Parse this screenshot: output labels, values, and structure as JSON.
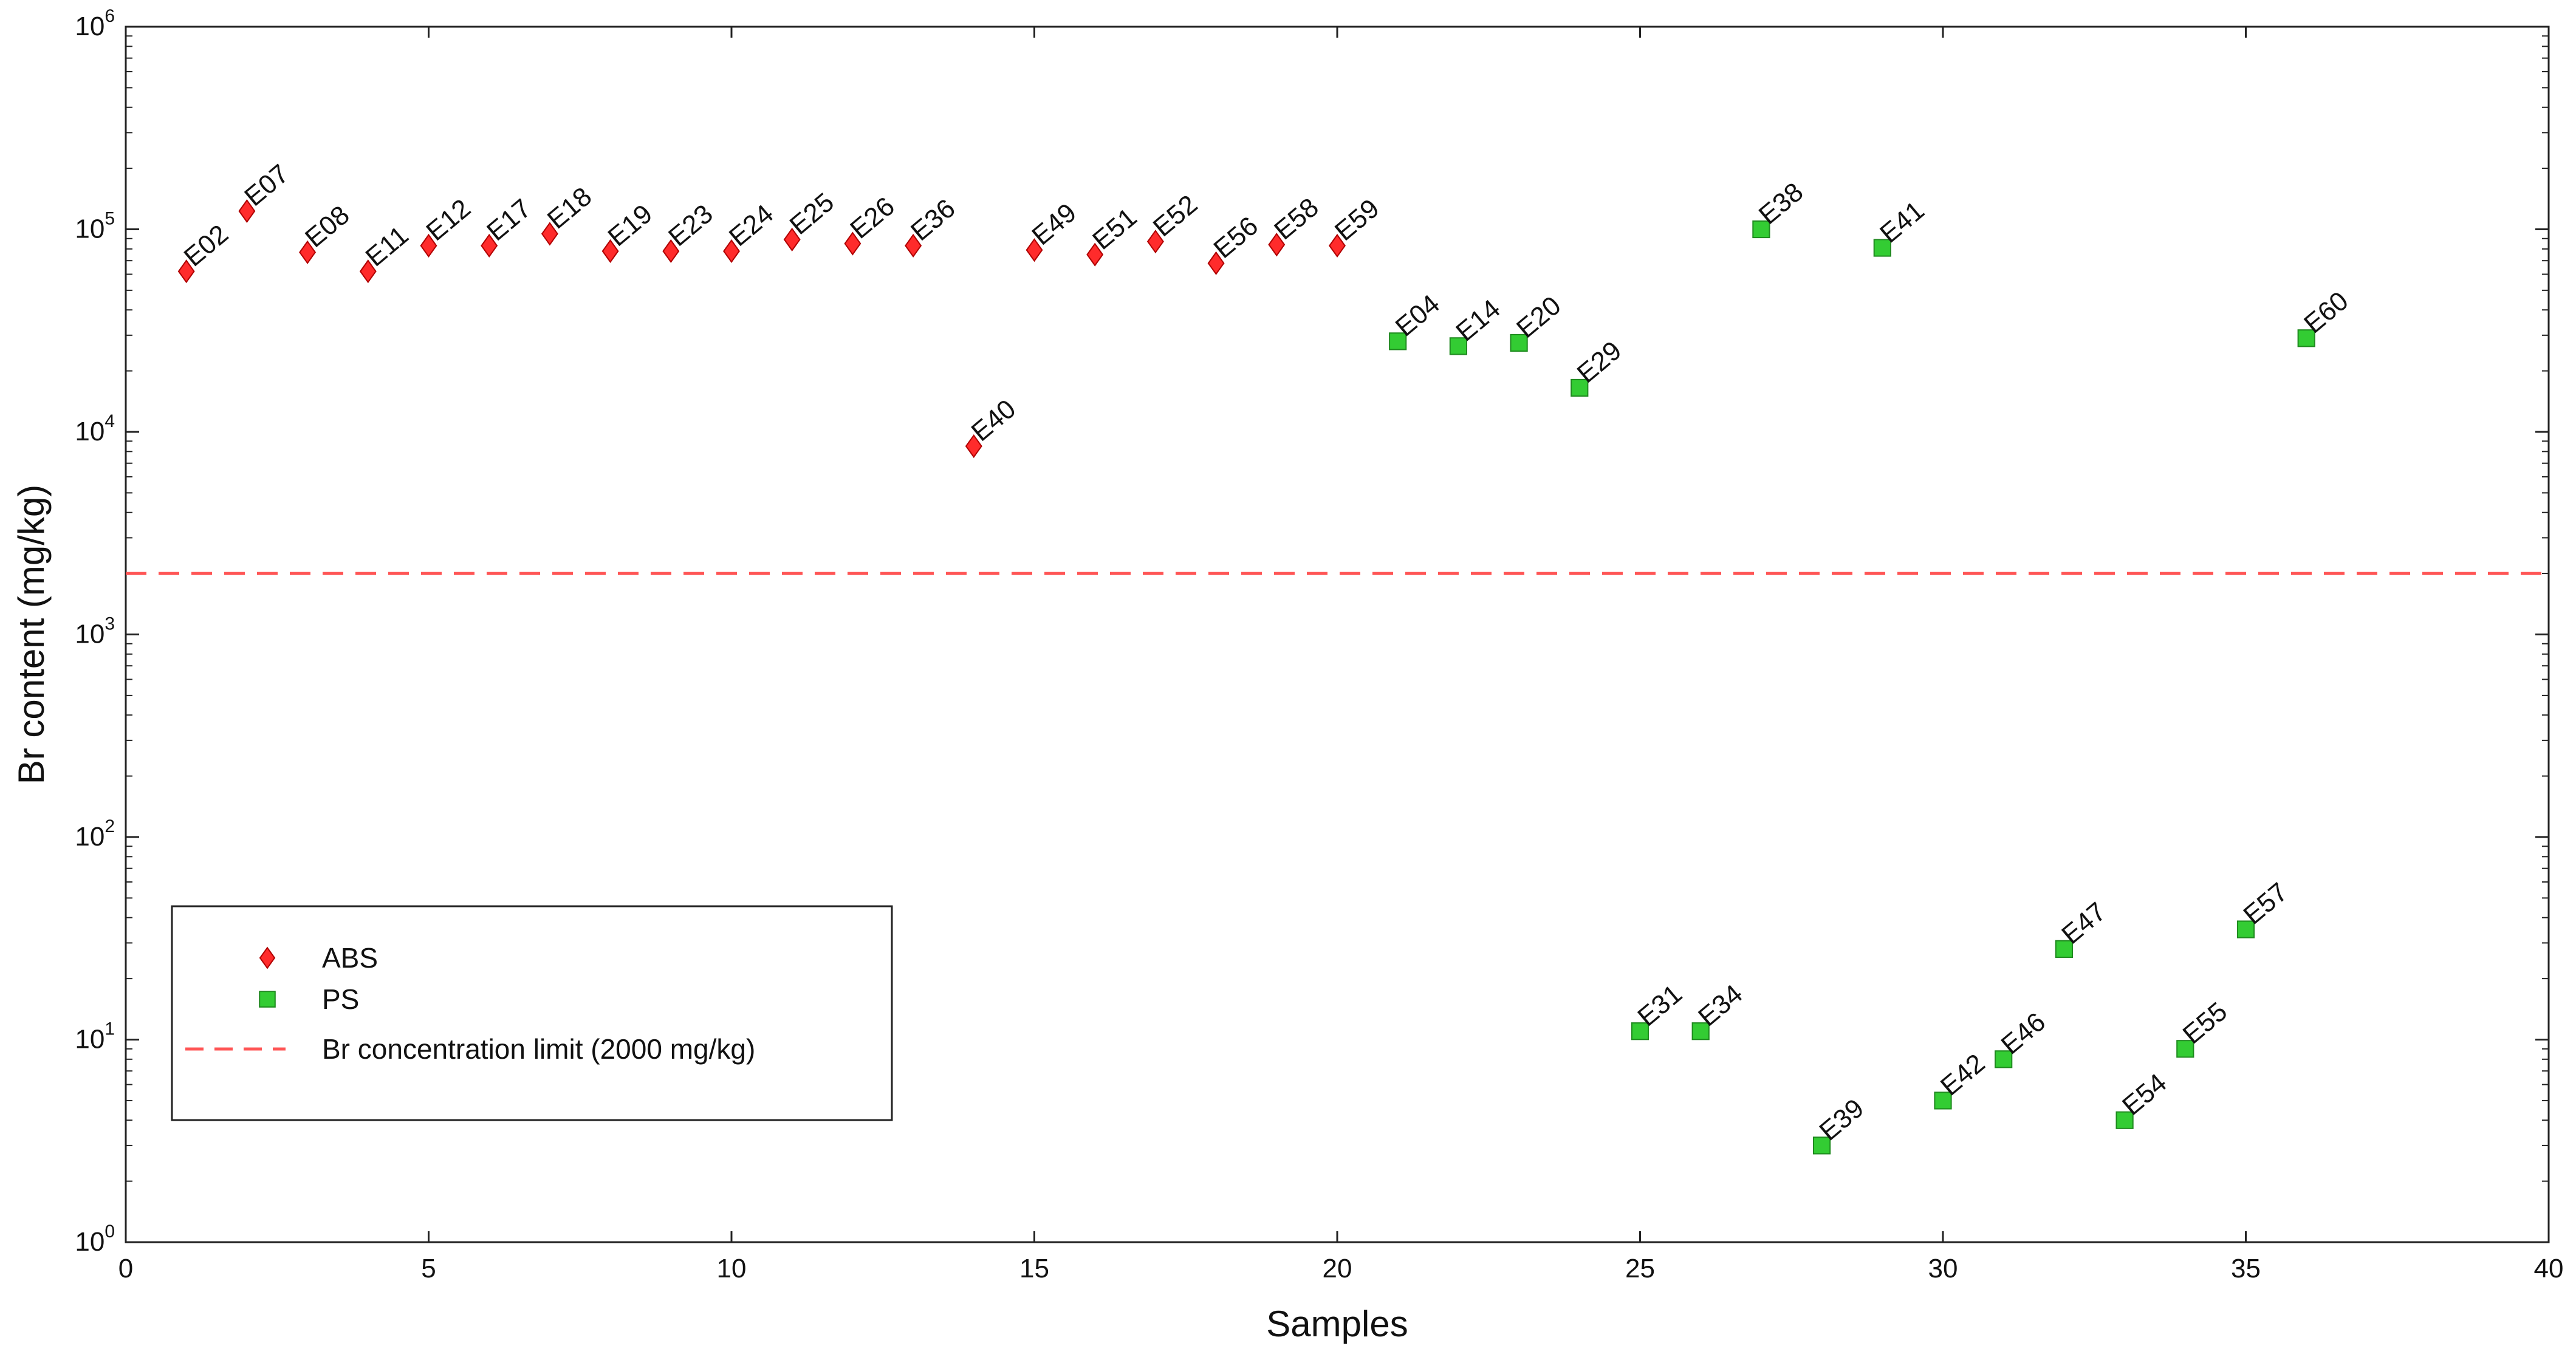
{
  "chart_data": {
    "type": "scatter",
    "xlabel": "Samples",
    "ylabel": "Br content (mg/kg)",
    "xlim": [
      0,
      40
    ],
    "ylim": [
      1,
      1000000
    ],
    "yscale": "log",
    "grid": false,
    "legend_position": "bottom-left",
    "x_ticks": [
      "0",
      "5",
      "10",
      "15",
      "20",
      "25",
      "30",
      "35",
      "40"
    ],
    "y_ticks": [
      {
        "base": "10",
        "exp": "0",
        "value": 1
      },
      {
        "base": "10",
        "exp": "1",
        "value": 10
      },
      {
        "base": "10",
        "exp": "2",
        "value": 100
      },
      {
        "base": "10",
        "exp": "3",
        "value": 1000
      },
      {
        "base": "10",
        "exp": "4",
        "value": 10000
      },
      {
        "base": "10",
        "exp": "5",
        "value": 100000
      },
      {
        "base": "10",
        "exp": "6",
        "value": 1000000
      }
    ],
    "series": [
      {
        "name": "ABS",
        "marker": "diamond",
        "color": "#ff2b2b",
        "points": [
          {
            "x": 1,
            "y": 62000,
            "label": "E02"
          },
          {
            "x": 2,
            "y": 123000,
            "label": "E07"
          },
          {
            "x": 3,
            "y": 77000,
            "label": "E08"
          },
          {
            "x": 4,
            "y": 62000,
            "label": "E11"
          },
          {
            "x": 5,
            "y": 83000,
            "label": "E12"
          },
          {
            "x": 6,
            "y": 83000,
            "label": "E17"
          },
          {
            "x": 7,
            "y": 95000,
            "label": "E18"
          },
          {
            "x": 8,
            "y": 78000,
            "label": "E19"
          },
          {
            "x": 9,
            "y": 78000,
            "label": "E23"
          },
          {
            "x": 10,
            "y": 78000,
            "label": "E24"
          },
          {
            "x": 11,
            "y": 89000,
            "label": "E25"
          },
          {
            "x": 12,
            "y": 85000,
            "label": "E26"
          },
          {
            "x": 13,
            "y": 83000,
            "label": "E36"
          },
          {
            "x": 14,
            "y": 8500,
            "label": "E40"
          },
          {
            "x": 15,
            "y": 79000,
            "label": "E49"
          },
          {
            "x": 16,
            "y": 75000,
            "label": "E51"
          },
          {
            "x": 17,
            "y": 87000,
            "label": "E52"
          },
          {
            "x": 18,
            "y": 68000,
            "label": "E56"
          },
          {
            "x": 19,
            "y": 84000,
            "label": "E58"
          },
          {
            "x": 20,
            "y": 83000,
            "label": "E59"
          }
        ]
      },
      {
        "name": "PS",
        "marker": "square",
        "color": "#33cc33",
        "points": [
          {
            "x": 21,
            "y": 28000,
            "label": "E04"
          },
          {
            "x": 22,
            "y": 26500,
            "label": "E14"
          },
          {
            "x": 23,
            "y": 27500,
            "label": "E20"
          },
          {
            "x": 24,
            "y": 16500,
            "label": "E29"
          },
          {
            "x": 25,
            "y": 11,
            "label": "E31"
          },
          {
            "x": 26,
            "y": 11,
            "label": "E34"
          },
          {
            "x": 27,
            "y": 100000,
            "label": "E38"
          },
          {
            "x": 28,
            "y": 3,
            "label": "E39"
          },
          {
            "x": 29,
            "y": 81000,
            "label": "E41"
          },
          {
            "x": 30,
            "y": 5,
            "label": "E42"
          },
          {
            "x": 31,
            "y": 8,
            "label": "E46"
          },
          {
            "x": 32,
            "y": 28,
            "label": "E47"
          },
          {
            "x": 33,
            "y": 4,
            "label": "E54"
          },
          {
            "x": 34,
            "y": 9,
            "label": "E55"
          },
          {
            "x": 35,
            "y": 35,
            "label": "E57"
          },
          {
            "x": 36,
            "y": 29000,
            "label": "E60"
          }
        ]
      }
    ],
    "reference_line": {
      "name": "Br concentration limit (2000 mg/kg)",
      "y": 2000,
      "style": "dashed",
      "color": "#ff5555"
    },
    "legend": [
      {
        "label": "ABS",
        "marker": "diamond",
        "color": "#ff2b2b"
      },
      {
        "label": "PS",
        "marker": "square",
        "color": "#33cc33"
      },
      {
        "label": "Br concentration limit (2000 mg/kg)",
        "marker": "dashed-line",
        "color": "#ff5555"
      }
    ]
  }
}
